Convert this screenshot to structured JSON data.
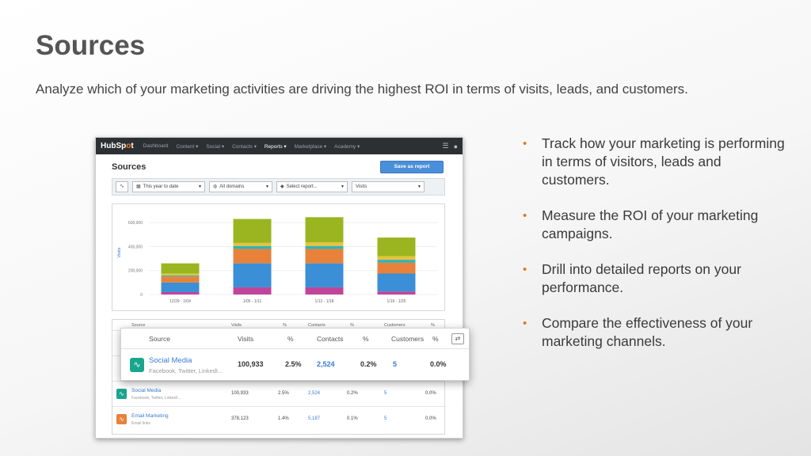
{
  "slide": {
    "title": "Sources",
    "subtitle": "Analyze which of your marketing activities are driving the highest ROI in terms of visits, leads, and customers.",
    "bullets": [
      "Track how your marketing is performing in terms of visitors, leads and customers.",
      "Measure the ROI of your marketing campaigns.",
      "Drill into detailed reports on your performance.",
      "Compare the effectiveness of your marketing channels."
    ],
    "bullet_color": "#e07b22"
  },
  "app": {
    "logo_main": "HubSp",
    "logo_accent": "o",
    "logo_end": "t",
    "nav": [
      "Dashboard",
      "Content ▾",
      "Social ▾",
      "Contacts ▾",
      "Reports ▾",
      "Marketplace ▾",
      "Academy ▾"
    ],
    "nav_active_index": 4,
    "page_title": "Sources",
    "save_button": "Save as report",
    "filters": {
      "date": "This year to date",
      "domains": "All domains",
      "report": "Select report...",
      "metric": "Visits"
    }
  },
  "chart_data": {
    "type": "bar",
    "stacked": true,
    "ylabel": "Visits",
    "yticks": [
      "0",
      "200,000",
      "400,000",
      "600,000"
    ],
    "ylim": [
      0,
      700000
    ],
    "categories": [
      "12/29 - 1/04",
      "1/05 - 1/11",
      "1/12 - 1/18",
      "1/19 - 1/25"
    ],
    "series": [
      {
        "color": "#c0459a",
        "values": [
          20000,
          60000,
          60000,
          25000
        ]
      },
      {
        "color": "#3a8fd6",
        "values": [
          80000,
          200000,
          200000,
          150000
        ]
      },
      {
        "color": "#e8823a",
        "values": [
          50000,
          120000,
          120000,
          90000
        ]
      },
      {
        "color": "#33b3b3",
        "values": [
          10000,
          25000,
          25000,
          25000
        ]
      },
      {
        "color": "#e5c33a",
        "values": [
          15000,
          25000,
          30000,
          30000
        ]
      },
      {
        "color": "#9bb521",
        "values": [
          85000,
          200000,
          210000,
          155000
        ]
      }
    ]
  },
  "table": {
    "headers": [
      "Source",
      "Visits",
      "%",
      "Contacts",
      "%",
      "Customers",
      "%"
    ],
    "rows": [
      {
        "name": "Social Media",
        "sub": "Facebook, Twitter, LinkedI...",
        "visits": "100,933",
        "pct": "2.5%",
        "contacts": "2,524",
        "cpct": "0.2%",
        "customers": "5",
        "custpct": "0.0%",
        "color": "#1aa58f",
        "icon": "pulse-icon"
      },
      {
        "name": "Email Marketing",
        "sub": "Email links",
        "visits": "378,123",
        "pct": "1.4%",
        "contacts": "5,187",
        "cpct": "0.1%",
        "customers": "5",
        "custpct": "0.0%",
        "color": "#e8823a",
        "icon": "pulse-icon"
      }
    ]
  },
  "popout": {
    "headers": [
      "Source",
      "Visits",
      "%",
      "Contacts",
      "%",
      "Customers",
      "%"
    ],
    "name": "Social Media",
    "sub": "Facebook, Twitter, LinkedI...",
    "visits": "100,933",
    "pct": "2.5%",
    "contacts": "2,524",
    "cpct": "0.2%",
    "customers": "5",
    "custpct": "0.0%"
  }
}
